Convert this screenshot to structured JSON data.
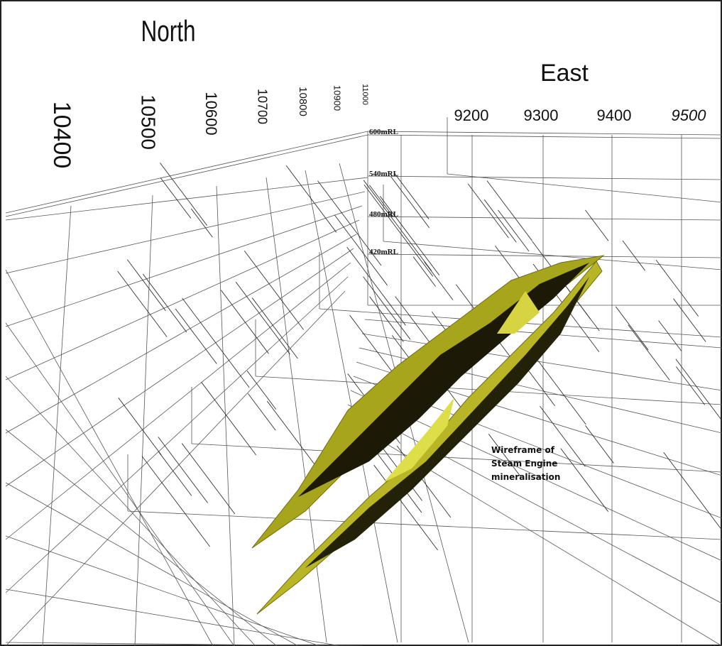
{
  "axes": {
    "north": {
      "title": "North",
      "labels": [
        "10400",
        "10500",
        "10600",
        "10700",
        "10800",
        "10900",
        "11000"
      ]
    },
    "east": {
      "title": "East",
      "labels": [
        "9200",
        "9300",
        "9400",
        "9500"
      ]
    },
    "elevation": {
      "labels": [
        "600mRL",
        "540mRL",
        "480mRL",
        "420mRL"
      ]
    }
  },
  "annotation": {
    "lines": [
      "Wireframe of",
      "Steam Engine",
      "mineralisation"
    ]
  }
}
